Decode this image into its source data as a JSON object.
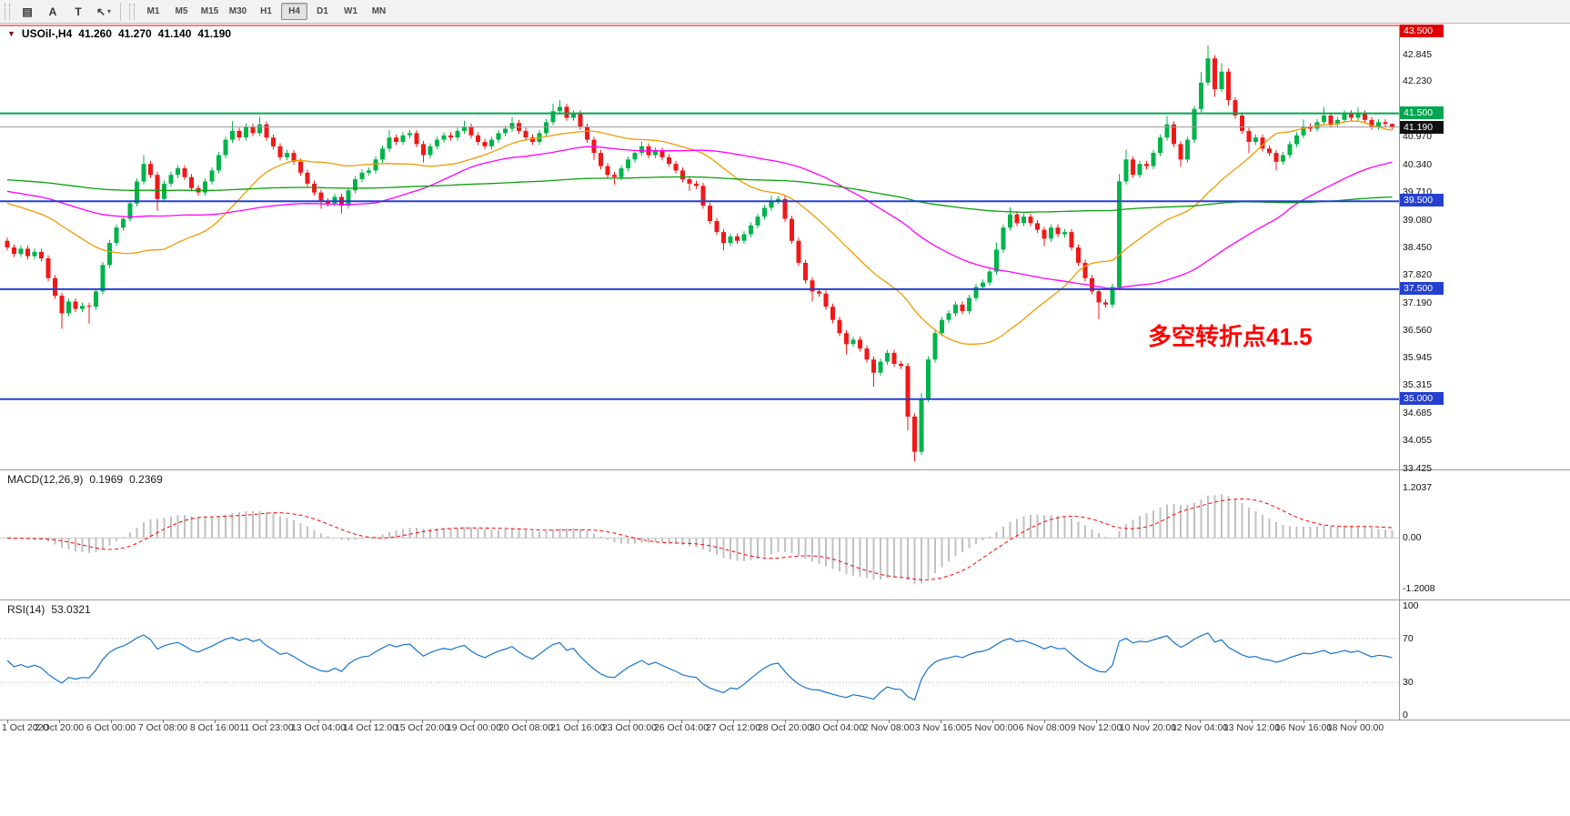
{
  "toolbar": {
    "tools": [
      {
        "name": "tile-windows-icon",
        "glyph": "▤"
      },
      {
        "name": "text-label-icon",
        "glyph": "A"
      },
      {
        "name": "text-tool-icon",
        "glyph": "T"
      },
      {
        "name": "arrow-tool-icon",
        "glyph": "↖",
        "caret": "▾"
      }
    ],
    "timeframes": [
      "M1",
      "M5",
      "M15",
      "M30",
      "H1",
      "H4",
      "D1",
      "W1",
      "MN"
    ],
    "active_timeframe": "H4"
  },
  "chart": {
    "dropdown_arrow": "▼",
    "symbol_title": "USOil-,H4",
    "ohlc": {
      "open": "41.260",
      "high": "41.270",
      "low": "41.140",
      "close": "41.190"
    },
    "annotation": {
      "text": "多空转折点41.5",
      "color": "#ff0000"
    },
    "bid": {
      "price": 41.19,
      "label": "41.190",
      "box_color": "#111111",
      "line_color": "#9a9a9a"
    },
    "scale_ticks": [
      42.845,
      42.23,
      40.97,
      40.34,
      39.71,
      39.08,
      38.45,
      37.82,
      37.19,
      36.56,
      35.945,
      35.315,
      34.685,
      34.055,
      33.425
    ]
  },
  "chart_data": {
    "type": "candlestick",
    "title": "USOil-,H4",
    "ylim": [
      33.42,
      43.52
    ],
    "hlines": [
      {
        "price": 43.5,
        "label": "43.500",
        "color": "#e00000",
        "width": 1
      },
      {
        "price": 41.5,
        "label": "41.500",
        "color": "#00a651",
        "width": 2
      },
      {
        "price": 39.5,
        "label": "39.500",
        "color": "#2540d0",
        "width": 2
      },
      {
        "price": 37.5,
        "label": "37.500",
        "color": "#2540d0",
        "width": 2
      },
      {
        "price": 35.0,
        "label": "35.000",
        "color": "#2540d0",
        "width": 2
      }
    ],
    "candles": {
      "up_color": "#00b34a",
      "down_color": "#f01818",
      "first_open": 38.6,
      "default_wick": 0.07,
      "closes": [
        38.45,
        38.3,
        38.42,
        38.25,
        38.35,
        38.2,
        37.75,
        37.35,
        36.95,
        37.22,
        37.05,
        37.12,
        37.1,
        37.45,
        38.05,
        38.55,
        38.9,
        39.1,
        39.45,
        39.95,
        40.35,
        40.1,
        39.55,
        39.9,
        40.1,
        40.25,
        40.05,
        39.8,
        39.7,
        39.95,
        40.2,
        40.55,
        40.9,
        41.1,
        40.95,
        41.2,
        41.05,
        41.25,
        40.95,
        40.75,
        40.5,
        40.6,
        40.4,
        40.15,
        39.9,
        39.7,
        39.5,
        39.45,
        39.6,
        39.4,
        39.75,
        40.0,
        40.15,
        40.2,
        40.45,
        40.7,
        40.95,
        40.85,
        41.0,
        41.05,
        40.8,
        40.55,
        40.75,
        40.9,
        41.0,
        40.95,
        41.1,
        41.2,
        41.0,
        40.85,
        40.75,
        40.9,
        41.05,
        41.15,
        41.28,
        41.1,
        40.95,
        40.85,
        41.05,
        41.3,
        41.55,
        41.65,
        41.4,
        41.5,
        41.2,
        40.9,
        40.6,
        40.3,
        40.1,
        40.05,
        40.25,
        40.45,
        40.6,
        40.75,
        40.55,
        40.65,
        40.5,
        40.35,
        40.2,
        40.0,
        39.9,
        39.85,
        39.4,
        39.05,
        38.8,
        38.55,
        38.7,
        38.6,
        38.75,
        38.95,
        39.15,
        39.35,
        39.5,
        39.55,
        39.1,
        38.6,
        38.1,
        37.7,
        37.45,
        37.4,
        37.1,
        36.8,
        36.5,
        36.25,
        36.35,
        36.15,
        35.9,
        35.6,
        35.85,
        36.05,
        35.8,
        35.75,
        34.6,
        33.8,
        35.0,
        35.9,
        36.5,
        36.8,
        36.95,
        37.15,
        37.0,
        37.3,
        37.55,
        37.65,
        37.9,
        38.4,
        38.9,
        39.2,
        39.0,
        39.15,
        39.0,
        38.85,
        38.65,
        38.9,
        38.75,
        38.8,
        38.45,
        38.1,
        37.75,
        37.45,
        37.2,
        37.15,
        37.55,
        39.95,
        40.45,
        40.1,
        40.35,
        40.3,
        40.6,
        40.95,
        41.25,
        40.8,
        40.45,
        40.9,
        41.6,
        42.2,
        42.75,
        42.05,
        42.45,
        41.8,
        41.45,
        41.1,
        40.85,
        40.95,
        40.7,
        40.6,
        40.4,
        40.55,
        40.8,
        41.0,
        41.2,
        41.15,
        41.3,
        41.45,
        41.25,
        41.35,
        41.5,
        41.4,
        41.5,
        41.35,
        41.2,
        41.3,
        41.26,
        41.19
      ],
      "wick_overrides": {
        "8": [
          null,
          36.6
        ],
        "12": [
          null,
          36.72
        ],
        "20": [
          40.55,
          null
        ],
        "22": [
          null,
          39.28
        ],
        "33": [
          41.32,
          null
        ],
        "37": [
          41.42,
          null
        ],
        "46": [
          null,
          39.33
        ],
        "49": [
          null,
          39.22
        ],
        "56": [
          41.12,
          null
        ],
        "61": [
          null,
          40.38
        ],
        "67": [
          41.33,
          null
        ],
        "74": [
          41.42,
          null
        ],
        "80": [
          41.72,
          null
        ],
        "81": [
          41.8,
          null
        ],
        "86": [
          null,
          40.44
        ],
        "89": [
          null,
          39.88
        ],
        "93": [
          40.86,
          null
        ],
        "100": [
          null,
          39.73
        ],
        "105": [
          null,
          38.38
        ],
        "112": [
          39.63,
          null
        ],
        "118": [
          null,
          37.22
        ],
        "123": [
          null,
          36.02
        ],
        "127": [
          null,
          35.28
        ],
        "132": [
          null,
          34.28
        ],
        "133": [
          null,
          33.58
        ],
        "134": [
          35.14,
          null
        ],
        "145": [
          38.56,
          null
        ],
        "147": [
          39.36,
          null
        ],
        "152": [
          null,
          38.48
        ],
        "160": [
          null,
          36.82
        ],
        "163": [
          40.12,
          null
        ],
        "164": [
          40.68,
          null
        ],
        "170": [
          41.44,
          null
        ],
        "172": [
          null,
          40.28
        ],
        "175": [
          42.44,
          null
        ],
        "176": [
          43.05,
          null
        ],
        "177": [
          null,
          41.88
        ],
        "178": [
          42.64,
          null
        ],
        "179": [
          null,
          41.68
        ],
        "182": [
          null,
          40.6
        ],
        "186": [
          null,
          40.2
        ],
        "190": [
          41.36,
          null
        ],
        "193": [
          41.64,
          null
        ],
        "198": [
          41.64,
          null
        ],
        "203": [
          41.27,
          41.14
        ]
      }
    },
    "moving_averages": [
      {
        "name": "ma-fast-line",
        "period": 24,
        "pre": 39.5,
        "color": "#f29a00"
      },
      {
        "name": "ma-mid-line",
        "period": 55,
        "pre": 39.75,
        "color": "#ff00ff"
      },
      {
        "name": "ma-slow-line",
        "period": 150,
        "pre": 40.0,
        "color": "#0aa00a"
      }
    ],
    "indicators": {
      "macd": {
        "label": "MACD(12,26,9)",
        "value_main": "0.1969",
        "value_signal": "0.2369",
        "params": [
          12,
          26,
          9
        ],
        "ylim": [
          -1.45,
          1.6
        ],
        "scale_labels": [
          {
            "v": 1.2037,
            "label": "1.2037"
          },
          {
            "v": 0,
            "label": "0.00"
          },
          {
            "v": -1.2008,
            "label": "-1.2008"
          }
        ],
        "hist_color": "#c0c0c0",
        "signal_color": "#ff0000"
      },
      "rsi": {
        "label": "RSI(14)",
        "value": "53.0321",
        "period": 14,
        "levels": [
          70,
          30
        ],
        "ylim": [
          -4,
          104
        ],
        "scale_labels": [
          {
            "v": 100,
            "label": "100"
          },
          {
            "v": 70,
            "label": "70"
          },
          {
            "v": 30,
            "label": "30"
          },
          {
            "v": 0,
            "label": "0"
          }
        ],
        "color": "#1874cd"
      }
    },
    "time_labels": [
      "1 Oct 2020",
      "2 Oct 20:00",
      "6 Oct 00:00",
      "7 Oct 08:00",
      "8 Oct 16:00",
      "11 Oct 23:00",
      "13 Oct 04:00",
      "14 Oct 12:00",
      "15 Oct 20:00",
      "19 Oct 00:00",
      "20 Oct 08:00",
      "21 Oct 16:00",
      "23 Oct 00:00",
      "26 Oct 04:00",
      "27 Oct 12:00",
      "28 Oct 20:00",
      "30 Oct 04:00",
      "2 Nov 08:00",
      "3 Nov 16:00",
      "5 Nov 00:00",
      "6 Nov 08:00",
      "9 Nov 12:00",
      "10 Nov 20:00",
      "12 Nov 04:00",
      "13 Nov 12:00",
      "16 Nov 16:00",
      "18 Nov 00:00"
    ]
  }
}
